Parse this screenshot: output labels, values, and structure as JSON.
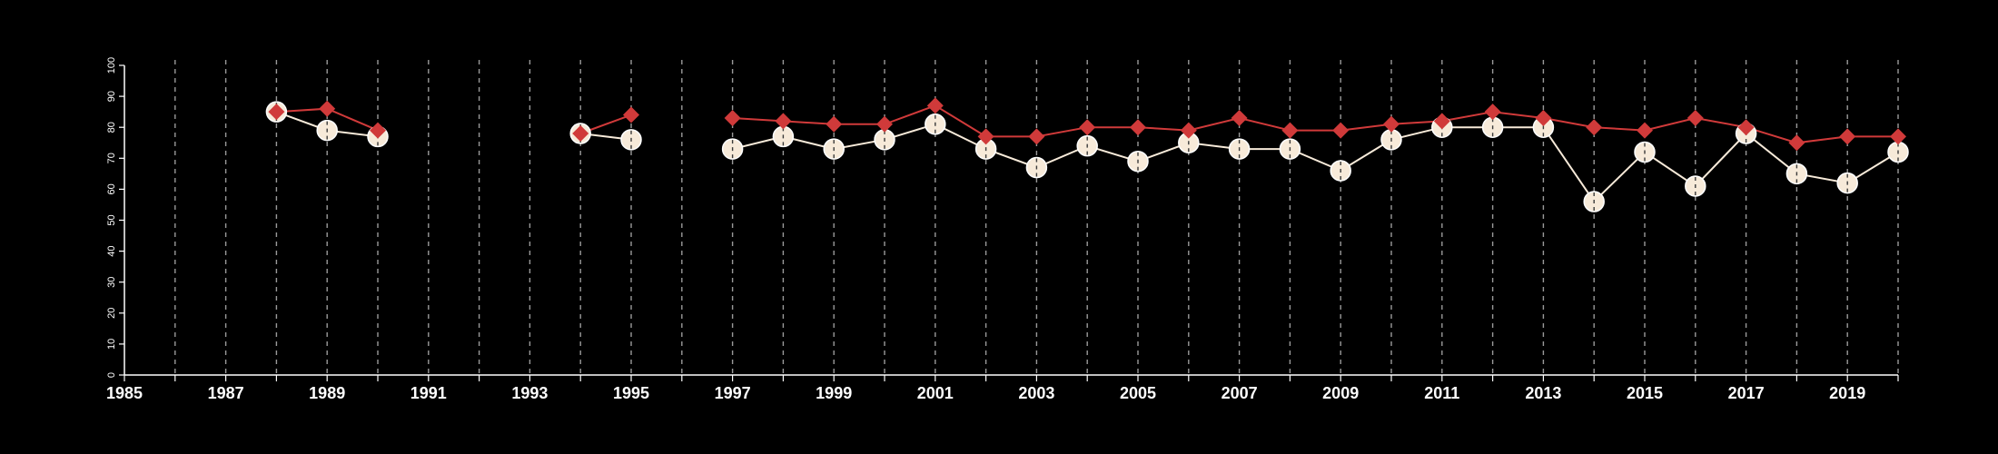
{
  "chart_data": {
    "type": "line",
    "xlim": [
      1985,
      2020
    ],
    "ylim": [
      0,
      100
    ],
    "x_ticks": [
      "1985",
      "1987",
      "1989",
      "1991",
      "1993",
      "1995",
      "1997",
      "1999",
      "2001",
      "2003",
      "2005",
      "2007",
      "2009",
      "2011",
      "2013",
      "2015",
      "2017",
      "2019"
    ],
    "y_ticks": [
      "0",
      "10",
      "20",
      "30",
      "40",
      "50",
      "60",
      "70",
      "80",
      "90",
      "100"
    ],
    "grid": "vertical dashed at every year",
    "legend": "none",
    "colors": {
      "background": "#000000",
      "axis": "#ffffff",
      "grid": "#9a9a9a",
      "series_red": "#d03a3a",
      "series_cream": "#f7ead9"
    },
    "series": [
      {
        "marker": "diamond",
        "color": "#d03a3a",
        "points": [
          [
            1988,
            85
          ],
          [
            1989,
            86
          ],
          [
            1990,
            79
          ],
          [
            1994,
            78
          ],
          [
            1995,
            84
          ],
          [
            1997,
            83
          ],
          [
            1998,
            82
          ],
          [
            1999,
            81
          ],
          [
            2000,
            81
          ],
          [
            2001,
            87
          ],
          [
            2002,
            77
          ],
          [
            2003,
            77
          ],
          [
            2004,
            80
          ],
          [
            2005,
            80
          ],
          [
            2006,
            79
          ],
          [
            2007,
            83
          ],
          [
            2008,
            79
          ],
          [
            2009,
            79
          ],
          [
            2010,
            81
          ],
          [
            2011,
            82
          ],
          [
            2012,
            85
          ],
          [
            2013,
            83
          ],
          [
            2014,
            80
          ],
          [
            2015,
            79
          ],
          [
            2016,
            83
          ],
          [
            2017,
            80
          ],
          [
            2018,
            75
          ],
          [
            2019,
            77
          ],
          [
            2020,
            77
          ]
        ]
      },
      {
        "marker": "circle",
        "color": "#f7ead9",
        "points": [
          [
            1988,
            85
          ],
          [
            1989,
            79
          ],
          [
            1990,
            77
          ],
          [
            1994,
            78
          ],
          [
            1995,
            76
          ],
          [
            1997,
            73
          ],
          [
            1998,
            77
          ],
          [
            1999,
            73
          ],
          [
            2000,
            76
          ],
          [
            2001,
            81
          ],
          [
            2002,
            73
          ],
          [
            2003,
            67
          ],
          [
            2004,
            74
          ],
          [
            2005,
            69
          ],
          [
            2006,
            75
          ],
          [
            2007,
            73
          ],
          [
            2008,
            73
          ],
          [
            2009,
            66
          ],
          [
            2010,
            76
          ],
          [
            2011,
            80
          ],
          [
            2012,
            80
          ],
          [
            2013,
            80
          ],
          [
            2014,
            56
          ],
          [
            2015,
            72
          ],
          [
            2016,
            61
          ],
          [
            2017,
            78
          ],
          [
            2018,
            65
          ],
          [
            2019,
            62
          ],
          [
            2020,
            72
          ]
        ]
      }
    ]
  }
}
